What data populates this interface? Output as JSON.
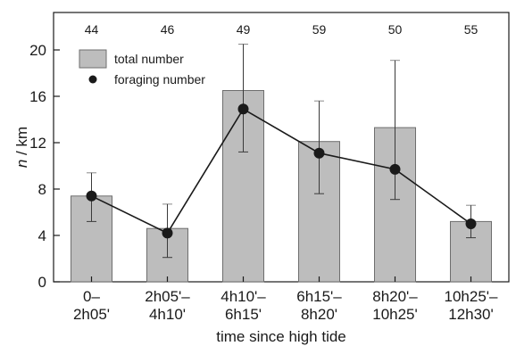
{
  "chart_data": {
    "type": "bar",
    "xlabel": "time since high tide",
    "ylabel_italic": "n",
    "ylabel_rest": " / km",
    "ylim": [
      0,
      22
    ],
    "yticks": [
      0,
      4,
      8,
      12,
      16,
      20
    ],
    "categories": [
      [
        "0–",
        "2h05'"
      ],
      [
        "2h05'–",
        "4h10'"
      ],
      [
        "4h10'–",
        "6h15'"
      ],
      [
        "6h15'–",
        "8h20'"
      ],
      [
        "8h20'–",
        "10h25'"
      ],
      [
        "10h25'–",
        "12h30'"
      ]
    ],
    "counts": [
      "44",
      "46",
      "49",
      "59",
      "50",
      "55"
    ],
    "series": [
      {
        "name": "total number",
        "kind": "bar",
        "values": [
          7.4,
          4.6,
          16.5,
          12.1,
          13.3,
          5.2
        ],
        "error_upper": [
          9.4,
          6.7,
          20.5,
          15.6,
          19.1,
          6.6
        ]
      },
      {
        "name": "foraging number",
        "kind": "line",
        "values": [
          7.4,
          4.2,
          14.9,
          11.1,
          9.7,
          5.0
        ],
        "error_low": [
          5.2,
          2.1,
          11.2,
          7.6,
          7.1,
          3.8
        ],
        "error_high": [
          9.4,
          6.7,
          20.5,
          15.6,
          19.1,
          6.6
        ]
      }
    ],
    "legend": "top-left",
    "grid": false,
    "colors": {
      "bar_fill": "#bdbdbd",
      "bar_stroke": "#6e6e6e",
      "line": "#1a1a1a",
      "axis": "#1a1a1a"
    }
  }
}
